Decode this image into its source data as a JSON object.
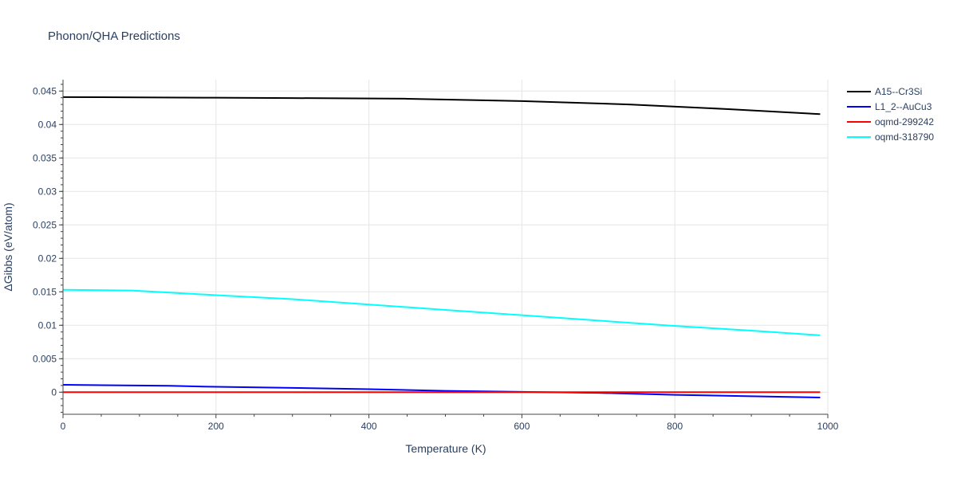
{
  "chart_data": {
    "type": "line",
    "title": "Phonon/QHA Predictions",
    "xlabel": "Temperature (K)",
    "ylabel": "ΔGibbs (eV/atom)",
    "xlim": [
      0,
      1000
    ],
    "ylim": [
      -0.0033,
      0.0467
    ],
    "grid": true,
    "legend_position": "top-right",
    "x_ticks": [
      {
        "value": 0,
        "label": "0"
      },
      {
        "value": 200,
        "label": "200"
      },
      {
        "value": 400,
        "label": "400"
      },
      {
        "value": 600,
        "label": "600"
      },
      {
        "value": 800,
        "label": "800"
      },
      {
        "value": 1000,
        "label": "1000"
      }
    ],
    "y_ticks": [
      {
        "value": 0,
        "label": "0"
      },
      {
        "value": 0.005,
        "label": "0.005"
      },
      {
        "value": 0.01,
        "label": "0.01"
      },
      {
        "value": 0.015,
        "label": "0.015"
      },
      {
        "value": 0.02,
        "label": "0.02"
      },
      {
        "value": 0.025,
        "label": "0.025"
      },
      {
        "value": 0.03,
        "label": "0.03"
      },
      {
        "value": 0.035,
        "label": "0.035"
      },
      {
        "value": 0.04,
        "label": "0.04"
      },
      {
        "value": 0.045,
        "label": "0.045"
      }
    ],
    "series": [
      {
        "name": "A15--Cr3Si",
        "color": "#000000",
        "x": [
          0,
          100,
          200,
          300,
          450,
          600,
          740,
          870,
          990
        ],
        "y": [
          0.0441,
          0.04405,
          0.044,
          0.04395,
          0.04385,
          0.0435,
          0.043,
          0.0423,
          0.04155
        ]
      },
      {
        "name": "L1_2--AuCu3",
        "color": "#0000ff",
        "x": [
          0,
          140,
          200,
          300,
          400,
          500,
          600,
          700,
          800,
          900,
          990
        ],
        "y": [
          0.0011,
          0.00095,
          0.0008,
          0.00065,
          0.00045,
          0.0002,
          5e-05,
          -0.0001,
          -0.0004,
          -0.0006,
          -0.0008
        ]
      },
      {
        "name": "oqmd-299242",
        "color": "#ff0000",
        "x": [
          0,
          990
        ],
        "y": [
          0,
          0
        ]
      },
      {
        "name": "oqmd-318790",
        "color": "#00ffff",
        "x": [
          0,
          90,
          200,
          300,
          400,
          500,
          600,
          700,
          800,
          900,
          990
        ],
        "y": [
          0.0153,
          0.0152,
          0.0145,
          0.0139,
          0.0131,
          0.0123,
          0.0115,
          0.0107,
          0.0099,
          0.0092,
          0.0085
        ]
      }
    ]
  }
}
